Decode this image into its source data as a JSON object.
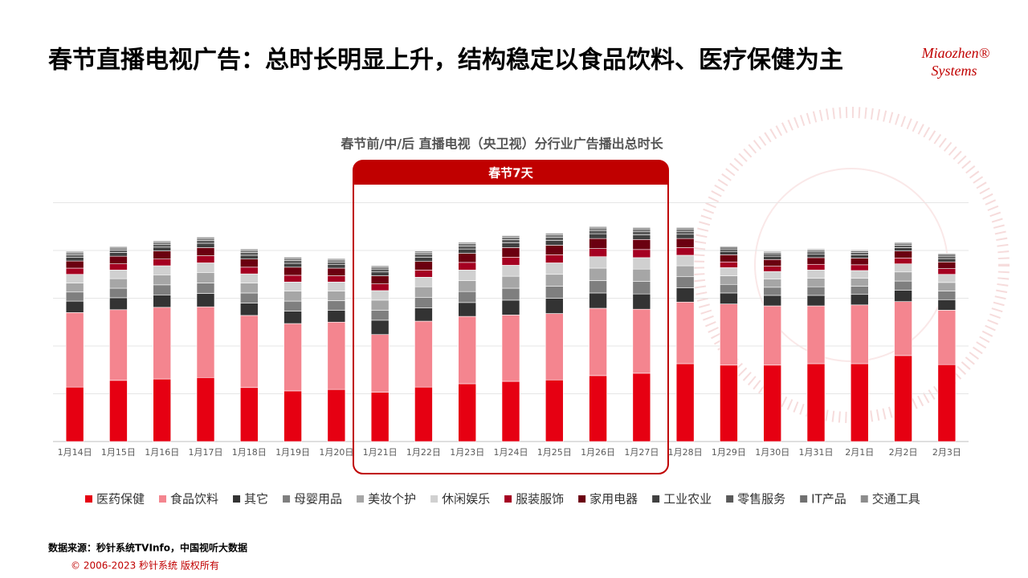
{
  "header": {
    "title": "春节直播电视广告：总时长明显上升，结构稳定以食品饮料、医疗保健为主",
    "logo": [
      "Miaozhen®",
      "Systems"
    ]
  },
  "highlight": {
    "label": "春节7天"
  },
  "chart_data": {
    "type": "stacked-bar",
    "title": "春节前/中/后  直播电视（央卫视）分行业广告播出总时长",
    "categories": [
      "1月14日",
      "1月15日",
      "1月16日",
      "1月17日",
      "1月18日",
      "1月19日",
      "1月20日",
      "1月21日",
      "1月22日",
      "1月23日",
      "1月24日",
      "1月25日",
      "1月26日",
      "1月27日",
      "1月28日",
      "1月29日",
      "1月30日",
      "1月31日",
      "2月1日",
      "2月2日",
      "2月3日"
    ],
    "ylim": [
      0,
      5
    ],
    "gridlines": [
      0,
      1,
      2,
      3,
      4,
      5
    ],
    "grid": true,
    "legend": "bottom",
    "series": [
      {
        "name": "医药保健",
        "color": "#e60012",
        "values": [
          1.14,
          1.28,
          1.31,
          1.34,
          1.13,
          1.06,
          1.09,
          1.03,
          1.14,
          1.21,
          1.26,
          1.29,
          1.38,
          1.43,
          1.63,
          1.6,
          1.6,
          1.63,
          1.63,
          1.8,
          1.61
        ]
      },
      {
        "name": "食品饮料",
        "color": "#f4858f",
        "values": [
          1.56,
          1.48,
          1.5,
          1.48,
          1.51,
          1.41,
          1.41,
          1.21,
          1.38,
          1.41,
          1.39,
          1.39,
          1.41,
          1.34,
          1.29,
          1.28,
          1.24,
          1.21,
          1.23,
          1.13,
          1.14
        ]
      },
      {
        "name": "其它",
        "color": "#333333",
        "values": [
          0.24,
          0.25,
          0.26,
          0.28,
          0.26,
          0.26,
          0.25,
          0.3,
          0.28,
          0.29,
          0.31,
          0.32,
          0.32,
          0.32,
          0.3,
          0.23,
          0.22,
          0.22,
          0.22,
          0.24,
          0.22
        ]
      },
      {
        "name": "母婴用品",
        "color": "#7f7f7f",
        "values": [
          0.19,
          0.2,
          0.21,
          0.22,
          0.21,
          0.21,
          0.2,
          0.21,
          0.22,
          0.23,
          0.25,
          0.25,
          0.26,
          0.26,
          0.23,
          0.18,
          0.17,
          0.18,
          0.17,
          0.19,
          0.18
        ]
      },
      {
        "name": "美妆个护",
        "color": "#a6a6a6",
        "values": [
          0.19,
          0.2,
          0.21,
          0.22,
          0.21,
          0.21,
          0.2,
          0.21,
          0.22,
          0.23,
          0.25,
          0.25,
          0.26,
          0.26,
          0.23,
          0.18,
          0.17,
          0.18,
          0.17,
          0.19,
          0.18
        ]
      },
      {
        "name": "休闲娱乐",
        "color": "#d0d0d0",
        "values": [
          0.18,
          0.18,
          0.19,
          0.2,
          0.19,
          0.19,
          0.19,
          0.2,
          0.2,
          0.22,
          0.23,
          0.24,
          0.24,
          0.24,
          0.22,
          0.17,
          0.16,
          0.17,
          0.16,
          0.17,
          0.17
        ]
      },
      {
        "name": "服装服饰",
        "color": "#a50021",
        "values": [
          0.13,
          0.13,
          0.14,
          0.15,
          0.14,
          0.14,
          0.13,
          0.14,
          0.15,
          0.16,
          0.17,
          0.17,
          0.17,
          0.17,
          0.16,
          0.12,
          0.11,
          0.12,
          0.12,
          0.12,
          0.12
        ]
      },
      {
        "name": "家用电器",
        "color": "#6b0010",
        "values": [
          0.15,
          0.16,
          0.17,
          0.17,
          0.17,
          0.17,
          0.16,
          0.17,
          0.18,
          0.19,
          0.2,
          0.2,
          0.21,
          0.21,
          0.19,
          0.15,
          0.14,
          0.14,
          0.14,
          0.15,
          0.14
        ]
      },
      {
        "name": "工业农业",
        "color": "#404040",
        "values": [
          0.08,
          0.08,
          0.08,
          0.09,
          0.08,
          0.08,
          0.08,
          0.08,
          0.09,
          0.09,
          0.1,
          0.1,
          0.1,
          0.1,
          0.09,
          0.07,
          0.07,
          0.07,
          0.07,
          0.07,
          0.07
        ]
      },
      {
        "name": "零售服务",
        "color": "#595959",
        "values": [
          0.05,
          0.05,
          0.06,
          0.06,
          0.06,
          0.06,
          0.05,
          0.06,
          0.06,
          0.06,
          0.07,
          0.07,
          0.07,
          0.07,
          0.06,
          0.05,
          0.05,
          0.05,
          0.05,
          0.05,
          0.05
        ]
      },
      {
        "name": "IT产品",
        "color": "#707070",
        "values": [
          0.04,
          0.04,
          0.04,
          0.04,
          0.04,
          0.04,
          0.04,
          0.04,
          0.04,
          0.05,
          0.05,
          0.05,
          0.05,
          0.05,
          0.05,
          0.04,
          0.03,
          0.04,
          0.03,
          0.04,
          0.04
        ]
      },
      {
        "name": "交通工具",
        "color": "#8c8c8c",
        "values": [
          0.03,
          0.03,
          0.03,
          0.03,
          0.03,
          0.03,
          0.03,
          0.03,
          0.03,
          0.03,
          0.03,
          0.03,
          0.03,
          0.03,
          0.03,
          0.02,
          0.02,
          0.02,
          0.02,
          0.02,
          0.02
        ]
      }
    ]
  },
  "footer": {
    "source": "数据来源：秒针系统TVInfo，中国视听大数据",
    "copyright": "© 2006-2023 秒针系统 版权所有"
  }
}
